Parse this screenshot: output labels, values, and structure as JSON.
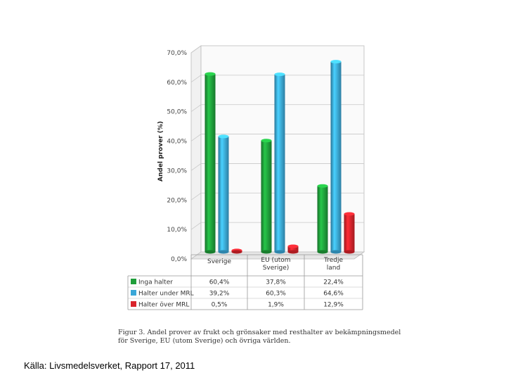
{
  "chart_data": {
    "type": "bar",
    "ylabel": "Andel prover (%)",
    "ylim": [
      0,
      70
    ],
    "yticks": [
      "0,0%",
      "10,0%",
      "20,0%",
      "30,0%",
      "40,0%",
      "50,0%",
      "60,0%",
      "70,0%"
    ],
    "categories": [
      [
        "Sverige"
      ],
      [
        "EU (utom",
        "Sverige)"
      ],
      [
        "Tredje",
        "land"
      ]
    ],
    "series": [
      {
        "name": "Inga halter",
        "color": "#1f9e3a",
        "values": [
          60.4,
          37.8,
          22.4
        ],
        "labels": [
          "60,4%",
          "37,8%",
          "22,4%"
        ]
      },
      {
        "name": "Halter under MRL",
        "color": "#3aa7d8",
        "values": [
          39.2,
          60.3,
          64.6
        ],
        "labels": [
          "39,2%",
          "60,3%",
          "64,6%"
        ]
      },
      {
        "name": "Halter över MRL",
        "color": "#d9232b",
        "values": [
          0.5,
          1.9,
          12.9
        ],
        "labels": [
          "0,5%",
          "1,9%",
          "12,9%"
        ]
      }
    ],
    "grid": true,
    "legend": "table-below"
  },
  "caption": "Figur 3. Andel prover av frukt och grönsaker med resthalter av bekämpningsmedel för Sverige, EU (utom Sverige) och övriga världen.",
  "source": "Källa: Livsmedelsverket, Rapport 17, 2011"
}
